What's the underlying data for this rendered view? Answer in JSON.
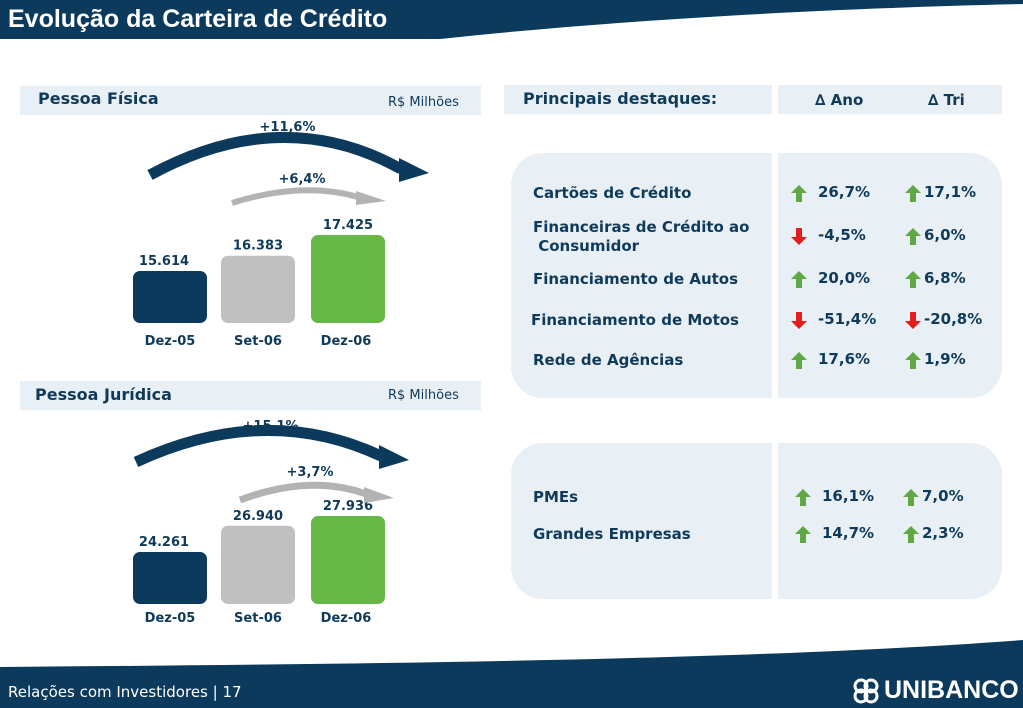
{
  "title": "Evolução da Carteira de Crédito",
  "footer": {
    "text": "Relações com Investidores | 17",
    "logo_text": "UNIBANCO",
    "logo_icon": "unibanco-logo-icon"
  },
  "colors": {
    "navy": "#0c3a5c",
    "gray": "#c0c0c0",
    "green": "#67b846",
    "panel": "#e8eff5",
    "up": "#5fa843",
    "down": "#e31c1c"
  },
  "pessoa_fisica": {
    "title": "Pessoa Física",
    "unit": "R$ Milhões"
  },
  "pessoa_juridica": {
    "title": "Pessoa Jurídica",
    "unit": "R$ Milhões"
  },
  "chart_data": [
    {
      "type": "bar",
      "title": "Pessoa Física",
      "unit": "R$ Milhões",
      "categories": [
        "Dez-05",
        "Set-06",
        "Dez-06"
      ],
      "values": [
        15614,
        16383,
        17425
      ],
      "value_labels": [
        "15.614",
        "16.383",
        "17.425"
      ],
      "colors": [
        "#0c3a5c",
        "#c0c0c0",
        "#67b846"
      ],
      "annotations": [
        {
          "label": "+11,6%",
          "from": "Dez-05",
          "to": "Dez-06"
        },
        {
          "label": "+6,4%",
          "from": "Set-06",
          "to": "Dez-06"
        }
      ]
    },
    {
      "type": "bar",
      "title": "Pessoa Jurídica",
      "unit": "R$ Milhões",
      "categories": [
        "Dez-05",
        "Set-06",
        "Dez-06"
      ],
      "values": [
        24261,
        26940,
        27936
      ],
      "value_labels": [
        "24.261",
        "26.940",
        "27.936"
      ],
      "colors": [
        "#0c3a5c",
        "#c0c0c0",
        "#67b846"
      ],
      "annotations": [
        {
          "label": "+15,1%",
          "from": "Dez-05",
          "to": "Dez-06"
        },
        {
          "label": "+3,7%",
          "from": "Set-06",
          "to": "Dez-06"
        }
      ]
    }
  ],
  "highlights": {
    "title": "Principais destaques:",
    "col_ano": "∆ Ano",
    "col_tri": "∆ Tri",
    "pf_rows": [
      {
        "label": "Cartões de Crédito",
        "ano": "26,7%",
        "ano_dir": "up",
        "tri": "17,1%",
        "tri_dir": "up"
      },
      {
        "label": "Financeiras de Crédito ao\n Consumidor",
        "ano": "-4,5%",
        "ano_dir": "down",
        "tri": "6,0%",
        "tri_dir": "up"
      },
      {
        "label": "Financiamento de Autos",
        "ano": "20,0%",
        "ano_dir": "up",
        "tri": "6,8%",
        "tri_dir": "up"
      },
      {
        "label": "Financiamento de Motos",
        "ano": "-51,4%",
        "ano_dir": "down",
        "tri": "-20,8%",
        "tri_dir": "down"
      },
      {
        "label": "Rede de Agências",
        "ano": "17,6%",
        "ano_dir": "up",
        "tri": "1,9%",
        "tri_dir": "up"
      }
    ],
    "pj_rows": [
      {
        "label": "PMEs",
        "ano": "16,1%",
        "ano_dir": "up",
        "tri": "7,0%",
        "tri_dir": "up"
      },
      {
        "label": "Grandes Empresas",
        "ano": "14,7%",
        "ano_dir": "up",
        "tri": "2,3%",
        "tri_dir": "up"
      }
    ]
  }
}
